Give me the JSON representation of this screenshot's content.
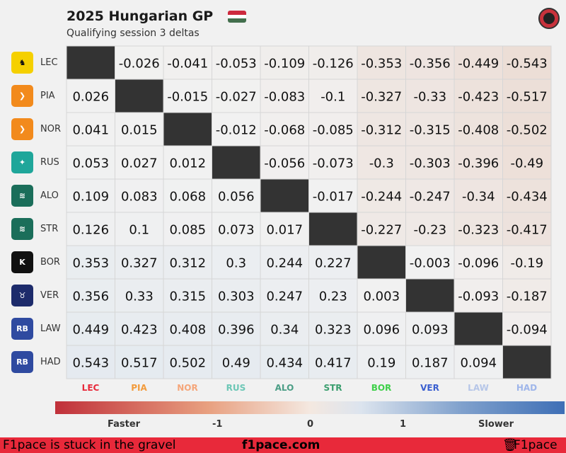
{
  "header": {
    "title": "2025 Hungarian GP",
    "subtitle": "Qualifying session 3 deltas",
    "flag_colors": [
      "#cd2a3e",
      "#ffffff",
      "#436f4d"
    ]
  },
  "chart_data": {
    "type": "heatmap",
    "rows": [
      "LEC",
      "PIA",
      "NOR",
      "RUS",
      "ALO",
      "STR",
      "BOR",
      "VER",
      "LAW",
      "HAD"
    ],
    "columns": [
      "LEC",
      "PIA",
      "NOR",
      "RUS",
      "ALO",
      "STR",
      "BOR",
      "VER",
      "LAW",
      "HAD"
    ],
    "values": [
      [
        null,
        "-0.026",
        "-0.041",
        "-0.053",
        "-0.109",
        "-0.126",
        "-0.353",
        "-0.356",
        "-0.449",
        "-0.543"
      ],
      [
        "0.026",
        null,
        "-0.015",
        "-0.027",
        "-0.083",
        "-0.1",
        "-0.327",
        "-0.33",
        "-0.423",
        "-0.517"
      ],
      [
        "0.041",
        "0.015",
        null,
        "-0.012",
        "-0.068",
        "-0.085",
        "-0.312",
        "-0.315",
        "-0.408",
        "-0.502"
      ],
      [
        "0.053",
        "0.027",
        "0.012",
        null,
        "-0.056",
        "-0.073",
        "-0.3",
        "-0.303",
        "-0.396",
        "-0.49"
      ],
      [
        "0.109",
        "0.083",
        "0.068",
        "0.056",
        null,
        "-0.017",
        "-0.244",
        "-0.247",
        "-0.34",
        "-0.434"
      ],
      [
        "0.126",
        "0.1",
        "0.085",
        "0.073",
        "0.017",
        null,
        "-0.227",
        "-0.23",
        "-0.323",
        "-0.417"
      ],
      [
        "0.353",
        "0.327",
        "0.312",
        "0.3",
        "0.244",
        "0.227",
        null,
        "-0.003",
        "-0.096",
        "-0.19"
      ],
      [
        "0.356",
        "0.33",
        "0.315",
        "0.303",
        "0.247",
        "0.23",
        "0.003",
        null,
        "-0.093",
        "-0.187"
      ],
      [
        "0.449",
        "0.423",
        "0.408",
        "0.396",
        "0.34",
        "0.323",
        "0.096",
        "0.093",
        null,
        "-0.094"
      ],
      [
        "0.543",
        "0.517",
        "0.502",
        "0.49",
        "0.434",
        "0.417",
        "0.19",
        "0.187",
        "0.094",
        null
      ]
    ],
    "column_colors": [
      "#e8293a",
      "#f29b3c",
      "#f5a67a",
      "#6cc7b6",
      "#4c9e86",
      "#3a9e6e",
      "#3fd04a",
      "#3a5fd0",
      "#b6c6e8",
      "#9fb6ea"
    ],
    "colorbar": {
      "range": [
        -1.5,
        1.5
      ],
      "ticks": [
        "-1",
        "0",
        "1"
      ],
      "left_label": "Faster",
      "right_label": "Slower"
    }
  },
  "teams": [
    {
      "abbr": "LEC",
      "icon": "ferrari-icon",
      "color": "#f5d000",
      "glyph": "♞"
    },
    {
      "abbr": "PIA",
      "icon": "mclaren-icon",
      "color": "#f28a1c",
      "glyph": "❯"
    },
    {
      "abbr": "NOR",
      "icon": "mclaren-icon",
      "color": "#f28a1c",
      "glyph": "❯"
    },
    {
      "abbr": "RUS",
      "icon": "mercedes-icon",
      "color": "#1fa69a",
      "glyph": "✦"
    },
    {
      "abbr": "ALO",
      "icon": "aston-martin-icon",
      "color": "#1b6e5a",
      "glyph": "≋"
    },
    {
      "abbr": "STR",
      "icon": "aston-martin-icon",
      "color": "#1b6e5a",
      "glyph": "≋"
    },
    {
      "abbr": "BOR",
      "icon": "sauber-icon",
      "color": "#111111",
      "glyph": "K"
    },
    {
      "abbr": "VER",
      "icon": "red-bull-icon",
      "color": "#1d2b6b",
      "glyph": "♉"
    },
    {
      "abbr": "LAW",
      "icon": "racing-bulls-icon",
      "color": "#2f4aa0",
      "glyph": "RB"
    },
    {
      "abbr": "HAD",
      "icon": "racing-bulls-icon",
      "color": "#2f4aa0",
      "glyph": "RB"
    }
  ],
  "footer": {
    "left": "F1pace is stuck in the gravel",
    "center": "f1pace.com",
    "right": "F1pace",
    "right_icon": "trash-can-icon"
  }
}
